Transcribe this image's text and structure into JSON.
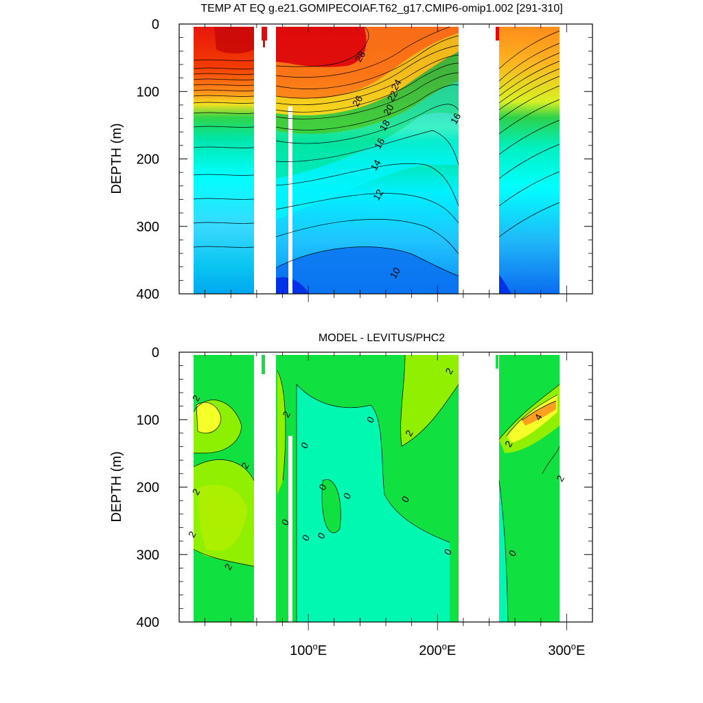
{
  "chart_data": [
    {
      "type": "heatmap",
      "subtype": "filled-contour",
      "title": "TEMP AT EQ g.e21.GOMIPECOIAF.T62_g17.CMIP6-omip1.002 [291-310]",
      "xlabel": "",
      "ylabel": "DEPTH (m)",
      "xlim": [
        0,
        320
      ],
      "ylim": [
        400,
        0
      ],
      "yticks": [
        0,
        100,
        200,
        300,
        400
      ],
      "ytick_labels": [
        "0",
        "100",
        "200",
        "300",
        "400"
      ],
      "xticks": [],
      "xtick_labels": [],
      "land_gaps_lon": [
        [
          60,
          75
        ],
        [
          220,
          252
        ],
        [
          300,
          320
        ]
      ],
      "contour_labels": [
        {
          "text": "28",
          "lon": 140,
          "depth": 48
        },
        {
          "text": "26",
          "lon": 138,
          "depth": 114
        },
        {
          "text": "24",
          "lon": 168,
          "depth": 90
        },
        {
          "text": "22",
          "lon": 165,
          "depth": 107
        },
        {
          "text": "20",
          "lon": 162,
          "depth": 127
        },
        {
          "text": "18",
          "lon": 159,
          "depth": 150
        },
        {
          "text": "16",
          "lon": 155,
          "depth": 177
        },
        {
          "text": "16",
          "lon": 214,
          "depth": 140
        },
        {
          "text": "14",
          "lon": 152,
          "depth": 209
        },
        {
          "text": "12",
          "lon": 154,
          "depth": 253
        },
        {
          "text": "10",
          "lon": 167,
          "depth": 369
        }
      ]
    },
    {
      "type": "heatmap",
      "subtype": "filled-contour",
      "title": "MODEL - LEVITUS/PHC2",
      "xlabel": "",
      "ylabel": "DEPTH (m)",
      "xlim": [
        0,
        320
      ],
      "ylim": [
        400,
        0
      ],
      "yticks": [
        0,
        100,
        200,
        300,
        400
      ],
      "ytick_labels": [
        "0",
        "100",
        "200",
        "300",
        "400"
      ],
      "xticks": [
        100,
        200,
        300
      ],
      "xtick_labels": [
        "100°E",
        "200°E",
        "300°E"
      ],
      "land_gaps_lon": [
        [
          60,
          75
        ],
        [
          220,
          252
        ],
        [
          300,
          320
        ]
      ],
      "contour_labels": [
        {
          "text": "2",
          "lon": 13,
          "depth": 68
        },
        {
          "text": "2",
          "lon": 51,
          "depth": 168
        },
        {
          "text": "2",
          "lon": 13,
          "depth": 207
        },
        {
          "text": "2",
          "lon": 10,
          "depth": 270
        },
        {
          "text": "2",
          "lon": 38,
          "depth": 318
        },
        {
          "text": "2",
          "lon": 83,
          "depth": 92
        },
        {
          "text": "0",
          "lon": 97,
          "depth": 138
        },
        {
          "text": "0",
          "lon": 111,
          "depth": 200
        },
        {
          "text": "0",
          "lon": 130,
          "depth": 213
        },
        {
          "text": "0",
          "lon": 82,
          "depth": 252
        },
        {
          "text": "0",
          "lon": 98,
          "depth": 275
        },
        {
          "text": "0",
          "lon": 110,
          "depth": 272
        },
        {
          "text": "0",
          "lon": 148,
          "depth": 100
        },
        {
          "text": "2",
          "lon": 178,
          "depth": 120
        },
        {
          "text": "0",
          "lon": 175,
          "depth": 218
        },
        {
          "text": "0",
          "lon": 208,
          "depth": 296
        },
        {
          "text": "2",
          "lon": 209,
          "depth": 28
        },
        {
          "text": "4",
          "lon": 278,
          "depth": 96
        },
        {
          "text": "2",
          "lon": 255,
          "depth": 136
        },
        {
          "text": "2",
          "lon": 295,
          "depth": 187
        },
        {
          "text": "0",
          "lon": 258,
          "depth": 298
        }
      ]
    }
  ]
}
